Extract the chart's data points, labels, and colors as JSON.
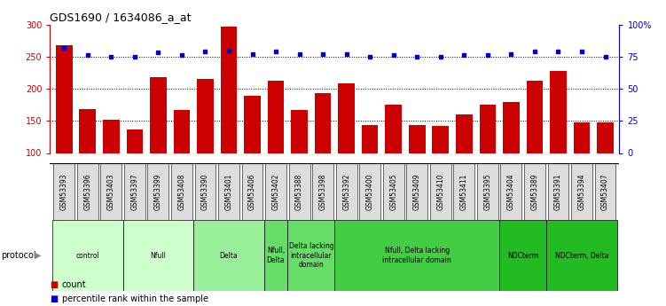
{
  "title": "GDS1690 / 1634086_a_at",
  "samples": [
    "GSM53393",
    "GSM53396",
    "GSM53403",
    "GSM53397",
    "GSM53399",
    "GSM53408",
    "GSM53390",
    "GSM53401",
    "GSM53406",
    "GSM53402",
    "GSM53388",
    "GSM53398",
    "GSM53392",
    "GSM53400",
    "GSM53405",
    "GSM53409",
    "GSM53410",
    "GSM53411",
    "GSM53395",
    "GSM53404",
    "GSM53389",
    "GSM53391",
    "GSM53394",
    "GSM53407"
  ],
  "counts": [
    268,
    168,
    152,
    136,
    218,
    167,
    215,
    297,
    189,
    213,
    167,
    193,
    208,
    143,
    175,
    143,
    142,
    160,
    175,
    180,
    213,
    228,
    147,
    147
  ],
  "percentiles": [
    82,
    76,
    75,
    75,
    78,
    76,
    79,
    80,
    77,
    79,
    77,
    77,
    77,
    75,
    76,
    75,
    75,
    76,
    76,
    77,
    79,
    79,
    79,
    75
  ],
  "ylim_left": [
    100,
    300
  ],
  "ylim_right": [
    0,
    100
  ],
  "yticks_left": [
    100,
    150,
    200,
    250,
    300
  ],
  "yticks_right": [
    0,
    25,
    50,
    75,
    100
  ],
  "ytick_labels_right": [
    "0",
    "25",
    "50",
    "75",
    "100%"
  ],
  "bar_color": "#cc0000",
  "dot_color": "#0000cc",
  "grid_dotted": [
    150,
    200,
    250
  ],
  "protocols": [
    {
      "label": "control",
      "start": 0,
      "end": 3,
      "color": "#ccffcc"
    },
    {
      "label": "Nfull",
      "start": 3,
      "end": 6,
      "color": "#ccffcc"
    },
    {
      "label": "Delta",
      "start": 6,
      "end": 9,
      "color": "#99ee99"
    },
    {
      "label": "Nfull,\nDelta",
      "start": 9,
      "end": 10,
      "color": "#66dd66"
    },
    {
      "label": "Delta lacking\nintracellular\ndomain",
      "start": 10,
      "end": 12,
      "color": "#66dd66"
    },
    {
      "label": "Nfull, Delta lacking\nintracellular domain",
      "start": 12,
      "end": 19,
      "color": "#44cc44"
    },
    {
      "label": "NDCterm",
      "start": 19,
      "end": 21,
      "color": "#22bb22"
    },
    {
      "label": "NDCterm, Delta",
      "start": 21,
      "end": 24,
      "color": "#22bb22"
    }
  ],
  "xlabel_protocol": "protocol",
  "legend_count_label": "count",
  "legend_percentile_label": "percentile rank within the sample",
  "bg_color": "#ffffff",
  "tick_label_bg": "#dddddd"
}
